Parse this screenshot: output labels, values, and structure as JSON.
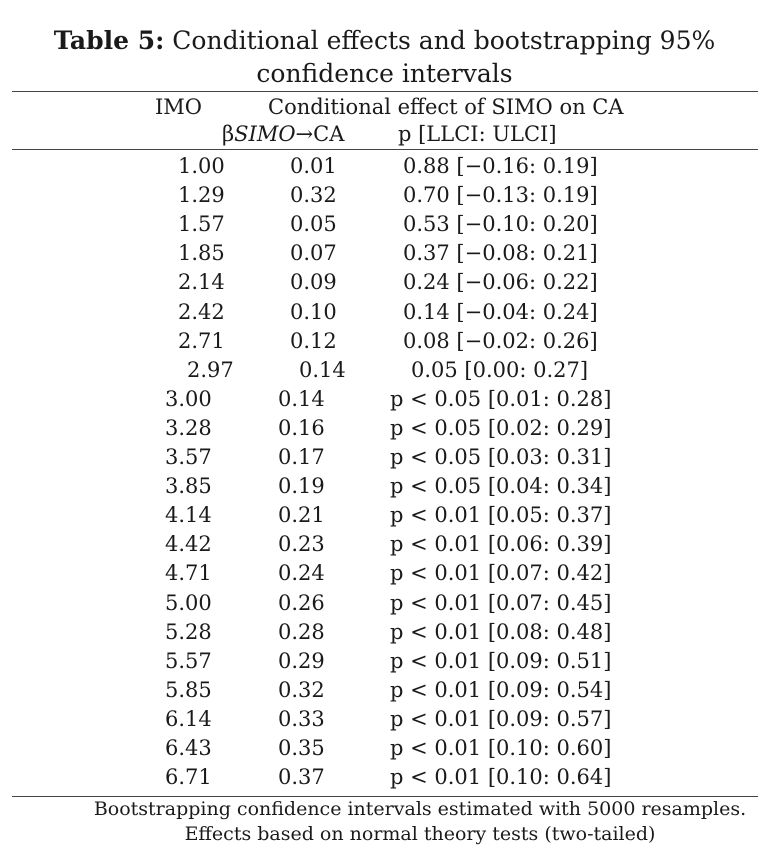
{
  "title": {
    "label": "Table 5:",
    "text": "Conditional effects and bootstrapping 95%",
    "line2": "confidence intervals"
  },
  "header": {
    "imo": "IMO",
    "effect": "Conditional effect of SIMO on CA",
    "beta_prefix": "β",
    "beta_italic": "SIMO",
    "beta_suffix": "→CA",
    "p": "p [LLCI: ULCI]"
  },
  "rows": [
    {
      "imo": "1.00",
      "beta": "0.01",
      "p": "0.88 [−0.16: 0.19]"
    },
    {
      "imo": "1.29",
      "beta": "0.32",
      "p": "0.70 [−0.13: 0.19]"
    },
    {
      "imo": "1.57",
      "beta": "0.05",
      "p": "0.53 [−0.10: 0.20]"
    },
    {
      "imo": "1.85",
      "beta": "0.07",
      "p": "0.37 [−0.08: 0.21]"
    },
    {
      "imo": "2.14",
      "beta": "0.09",
      "p": "0.24 [−0.06: 0.22]"
    },
    {
      "imo": "2.42",
      "beta": "0.10",
      "p": "0.14 [−0.04: 0.24]"
    },
    {
      "imo": "2.71",
      "beta": "0.12",
      "p": "0.08 [−0.02: 0.26]"
    },
    {
      "imo": "2.97",
      "beta": "0.14",
      "p": "0.05 [0.00: 0.27]"
    },
    {
      "imo": "3.00",
      "beta": "0.14",
      "p": "p < 0.05 [0.01: 0.28]"
    },
    {
      "imo": "3.28",
      "beta": "0.16",
      "p": "p < 0.05 [0.02: 0.29]"
    },
    {
      "imo": "3.57",
      "beta": "0.17",
      "p": "p < 0.05 [0.03: 0.31]"
    },
    {
      "imo": "3.85",
      "beta": "0.19",
      "p": "p < 0.05 [0.04: 0.34]"
    },
    {
      "imo": "4.14",
      "beta": "0.21",
      "p": "p < 0.01 [0.05: 0.37]"
    },
    {
      "imo": "4.42",
      "beta": "0.23",
      "p": "p < 0.01 [0.06: 0.39]"
    },
    {
      "imo": "4.71",
      "beta": "0.24",
      "p": "p < 0.01 [0.07: 0.42]"
    },
    {
      "imo": "5.00",
      "beta": "0.26",
      "p": "p < 0.01 [0.07: 0.45]"
    },
    {
      "imo": "5.28",
      "beta": "0.28",
      "p": "p < 0.01 [0.08: 0.48]"
    },
    {
      "imo": "5.57",
      "beta": "0.29",
      "p": "p < 0.01 [0.09: 0.51]"
    },
    {
      "imo": "5.85",
      "beta": "0.32",
      "p": "p < 0.01 [0.09: 0.54]"
    },
    {
      "imo": "6.14",
      "beta": "0.33",
      "p": "p < 0.01 [0.09: 0.57]"
    },
    {
      "imo": "6.43",
      "beta": "0.35",
      "p": "p < 0.01 [0.10: 0.60]"
    },
    {
      "imo": "6.71",
      "beta": "0.37",
      "p": "p < 0.01 [0.10: 0.64]"
    }
  ],
  "footnote": {
    "line1": "Bootstrapping confidence intervals estimated with 5000 resamples.",
    "line2": "Effects based on normal theory tests (two-tailed)"
  }
}
